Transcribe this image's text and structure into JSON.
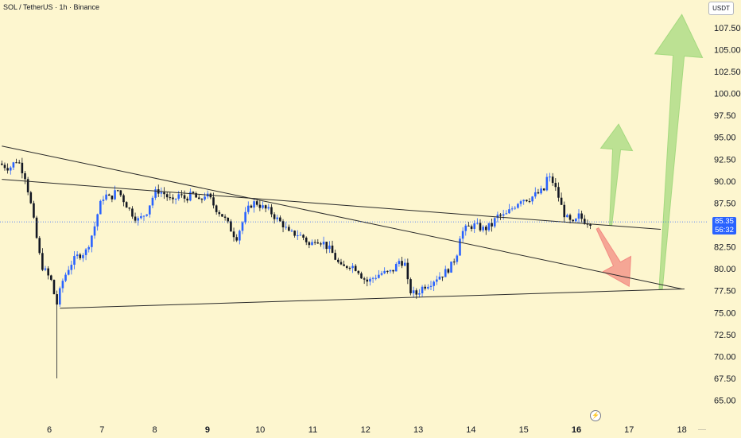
{
  "header": {
    "symbol": "SOL / TetherUS · 1h · Binance"
  },
  "currency": "USDT",
  "price_label": {
    "price": "85.35",
    "countdown": "56:32",
    "color": "#2962ff"
  },
  "colors": {
    "background": "#fdf6cf",
    "candle_up": "#2962ff",
    "candle_down": "#131722",
    "trendline": "#2a2a2a",
    "arrow_green": "#a5d97f",
    "arrow_red": "#f28b82"
  },
  "icons": {
    "lightning": "lightning-icon"
  },
  "chart_data": {
    "type": "candlestick",
    "title": "SOL / TetherUS · 1h · Binance",
    "xlabel": "",
    "ylabel": "",
    "grid": false,
    "y_ticks": [
      "65.00",
      "67.50",
      "70.00",
      "72.50",
      "75.00",
      "77.50",
      "80.00",
      "82.50",
      "85.00",
      "87.50",
      "90.00",
      "92.50",
      "95.00",
      "97.50",
      "100.00",
      "102.50",
      "105.00",
      "107.50"
    ],
    "y_tick_values": [
      65,
      67.5,
      70,
      72.5,
      75,
      77.5,
      80,
      82.5,
      85,
      87.5,
      90,
      92.5,
      95,
      97.5,
      100,
      102.5,
      105,
      107.5
    ],
    "x_ticks": [
      {
        "label": "6",
        "day": 6,
        "bold": false
      },
      {
        "label": "7",
        "day": 7,
        "bold": false
      },
      {
        "label": "8",
        "day": 8,
        "bold": false
      },
      {
        "label": "9",
        "day": 9,
        "bold": true
      },
      {
        "label": "10",
        "day": 10,
        "bold": false
      },
      {
        "label": "11",
        "day": 11,
        "bold": false
      },
      {
        "label": "12",
        "day": 12,
        "bold": false
      },
      {
        "label": "13",
        "day": 13,
        "bold": false
      },
      {
        "label": "14",
        "day": 14,
        "bold": false
      },
      {
        "label": "15",
        "day": 15,
        "bold": false
      },
      {
        "label": "16",
        "day": 16,
        "bold": true
      },
      {
        "label": "17",
        "day": 17,
        "bold": false
      },
      {
        "label": "18",
        "day": 18,
        "bold": false
      }
    ],
    "ylim": [
      62.5,
      110
    ],
    "xlim": [
      5.1,
      18.5
    ],
    "current_price": 85.35,
    "price_path": [
      [
        5.1,
        92.0
      ],
      [
        5.3,
        91.5
      ],
      [
        5.45,
        92.5
      ],
      [
        5.6,
        90.5
      ],
      [
        5.7,
        87.5
      ],
      [
        5.8,
        84.0
      ],
      [
        5.9,
        80.5
      ],
      [
        6.0,
        79.5
      ],
      [
        6.1,
        78.5
      ],
      [
        6.15,
        77.0
      ],
      [
        6.2,
        76.0
      ],
      [
        6.3,
        78.5
      ],
      [
        6.45,
        80.5
      ],
      [
        6.6,
        81.5
      ],
      [
        6.75,
        82.0
      ],
      [
        6.9,
        84.5
      ],
      [
        7.0,
        87.0
      ],
      [
        7.1,
        88.5
      ],
      [
        7.2,
        88.0
      ],
      [
        7.35,
        89.0
      ],
      [
        7.5,
        87.5
      ],
      [
        7.6,
        86.5
      ],
      [
        7.75,
        85.5
      ],
      [
        7.9,
        86.5
      ],
      [
        8.0,
        88.0
      ],
      [
        8.1,
        89.0
      ],
      [
        8.25,
        88.5
      ],
      [
        8.4,
        87.5
      ],
      [
        8.5,
        88.5
      ],
      [
        8.6,
        88.0
      ],
      [
        8.8,
        88.5
      ],
      [
        8.9,
        87.5
      ],
      [
        9.0,
        88.5
      ],
      [
        9.1,
        88.0
      ],
      [
        9.2,
        87.0
      ],
      [
        9.35,
        86.0
      ],
      [
        9.5,
        84.5
      ],
      [
        9.6,
        83.5
      ],
      [
        9.7,
        85.0
      ],
      [
        9.8,
        86.5
      ],
      [
        9.9,
        87.5
      ],
      [
        10.0,
        87.5
      ],
      [
        10.1,
        87.0
      ],
      [
        10.25,
        86.5
      ],
      [
        10.4,
        85.5
      ],
      [
        10.5,
        85.0
      ],
      [
        10.6,
        84.0
      ],
      [
        10.75,
        84.0
      ],
      [
        10.9,
        83.5
      ],
      [
        11.0,
        82.5
      ],
      [
        11.1,
        83.5
      ],
      [
        11.25,
        83.0
      ],
      [
        11.4,
        82.0
      ],
      [
        11.5,
        81.0
      ],
      [
        11.6,
        80.0
      ],
      [
        11.75,
        80.5
      ],
      [
        11.9,
        80.0
      ],
      [
        12.0,
        79.0
      ],
      [
        12.1,
        78.5
      ],
      [
        12.2,
        79.0
      ],
      [
        12.35,
        79.5
      ],
      [
        12.5,
        79.5
      ],
      [
        12.6,
        80.0
      ],
      [
        12.7,
        81.0
      ],
      [
        12.8,
        80.5
      ],
      [
        12.85,
        78.5
      ],
      [
        12.9,
        77.5
      ],
      [
        13.0,
        77.0
      ],
      [
        13.15,
        78.0
      ],
      [
        13.3,
        78.5
      ],
      [
        13.4,
        79.0
      ],
      [
        13.55,
        79.5
      ],
      [
        13.7,
        80.5
      ],
      [
        13.8,
        82.0
      ],
      [
        13.85,
        84.0
      ],
      [
        13.95,
        84.5
      ],
      [
        14.1,
        85.0
      ],
      [
        14.3,
        84.5
      ],
      [
        14.45,
        85.0
      ],
      [
        14.55,
        86.0
      ],
      [
        14.7,
        86.0
      ],
      [
        14.85,
        87.0
      ],
      [
        15.0,
        88.0
      ],
      [
        15.15,
        88.0
      ],
      [
        15.3,
        88.5
      ],
      [
        15.45,
        89.0
      ],
      [
        15.5,
        90.5
      ],
      [
        15.6,
        90.0
      ],
      [
        15.7,
        88.5
      ],
      [
        15.8,
        86.5
      ],
      [
        15.9,
        85.5
      ],
      [
        16.0,
        85.0
      ],
      [
        16.1,
        86.0
      ],
      [
        16.2,
        85.5
      ],
      [
        16.3,
        85.35
      ]
    ],
    "spike_low": {
      "day": 6.17,
      "low": 67.5
    },
    "trendlines": [
      {
        "name": "descending-upper",
        "from": [
          5.1,
          94.0
        ],
        "to": [
          18.0,
          77.7
        ]
      },
      {
        "name": "descending-horizontal",
        "from": [
          5.1,
          90.2
        ],
        "to": [
          17.6,
          84.5
        ]
      },
      {
        "name": "ascending-support",
        "from": [
          6.2,
          75.5
        ],
        "to": [
          18.05,
          77.7
        ]
      }
    ],
    "projections": [
      {
        "name": "big-green-arrow",
        "direction": "up",
        "from": [
          17.6,
          77.7
        ],
        "to": [
          18.0,
          109.0
        ],
        "color": "#a5d97f"
      },
      {
        "name": "small-green-arrow",
        "direction": "up",
        "from": [
          16.65,
          85.0
        ],
        "to": [
          16.8,
          96.5
        ],
        "color": "#a5d97f"
      },
      {
        "name": "red-arrow",
        "direction": "down",
        "from": [
          16.4,
          84.6
        ],
        "to": [
          17.0,
          78.0
        ],
        "color": "#f28b82"
      }
    ]
  }
}
